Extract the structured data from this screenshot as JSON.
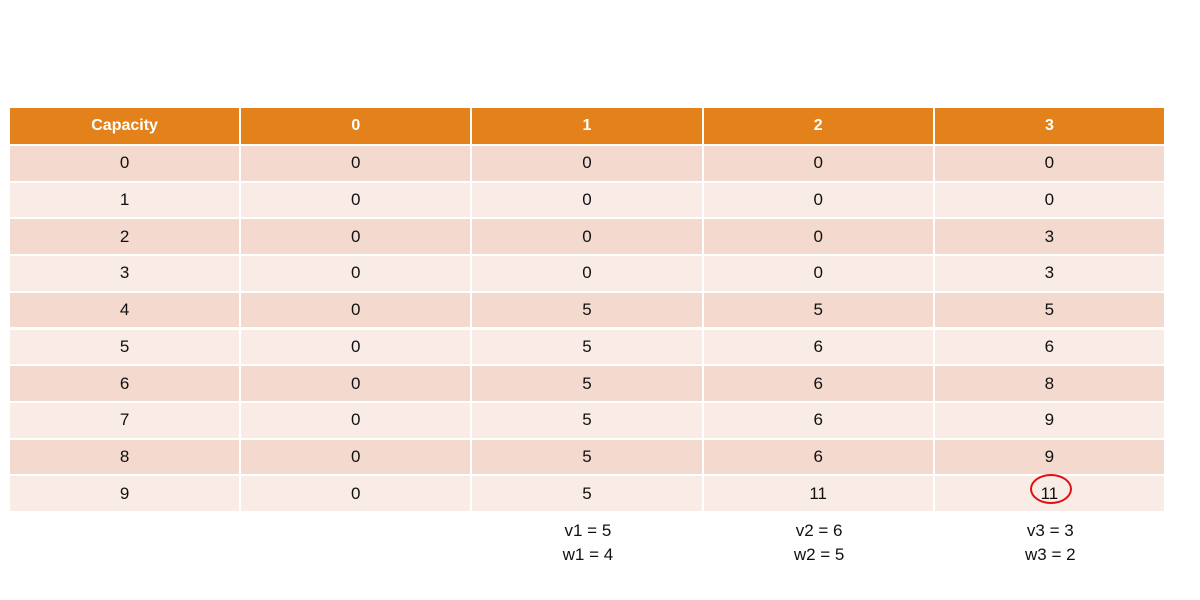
{
  "table": {
    "header": [
      "Capacity",
      "0",
      "1",
      "2",
      "3"
    ],
    "rows": [
      [
        0,
        0,
        0,
        0,
        0
      ],
      [
        1,
        0,
        0,
        0,
        0
      ],
      [
        2,
        0,
        0,
        0,
        3
      ],
      [
        3,
        0,
        0,
        0,
        3
      ],
      [
        4,
        0,
        5,
        5,
        5
      ],
      [
        5,
        0,
        5,
        6,
        6
      ],
      [
        6,
        0,
        5,
        6,
        8
      ],
      [
        7,
        0,
        5,
        6,
        9
      ],
      [
        8,
        0,
        5,
        6,
        9
      ],
      [
        9,
        0,
        5,
        11,
        11
      ]
    ],
    "notes": [
      [
        "v1 = 5",
        "w1 = 4"
      ],
      [
        "v2 = 6",
        "w2 = 5"
      ],
      [
        "v3 = 3",
        "w3 = 2"
      ]
    ]
  }
}
